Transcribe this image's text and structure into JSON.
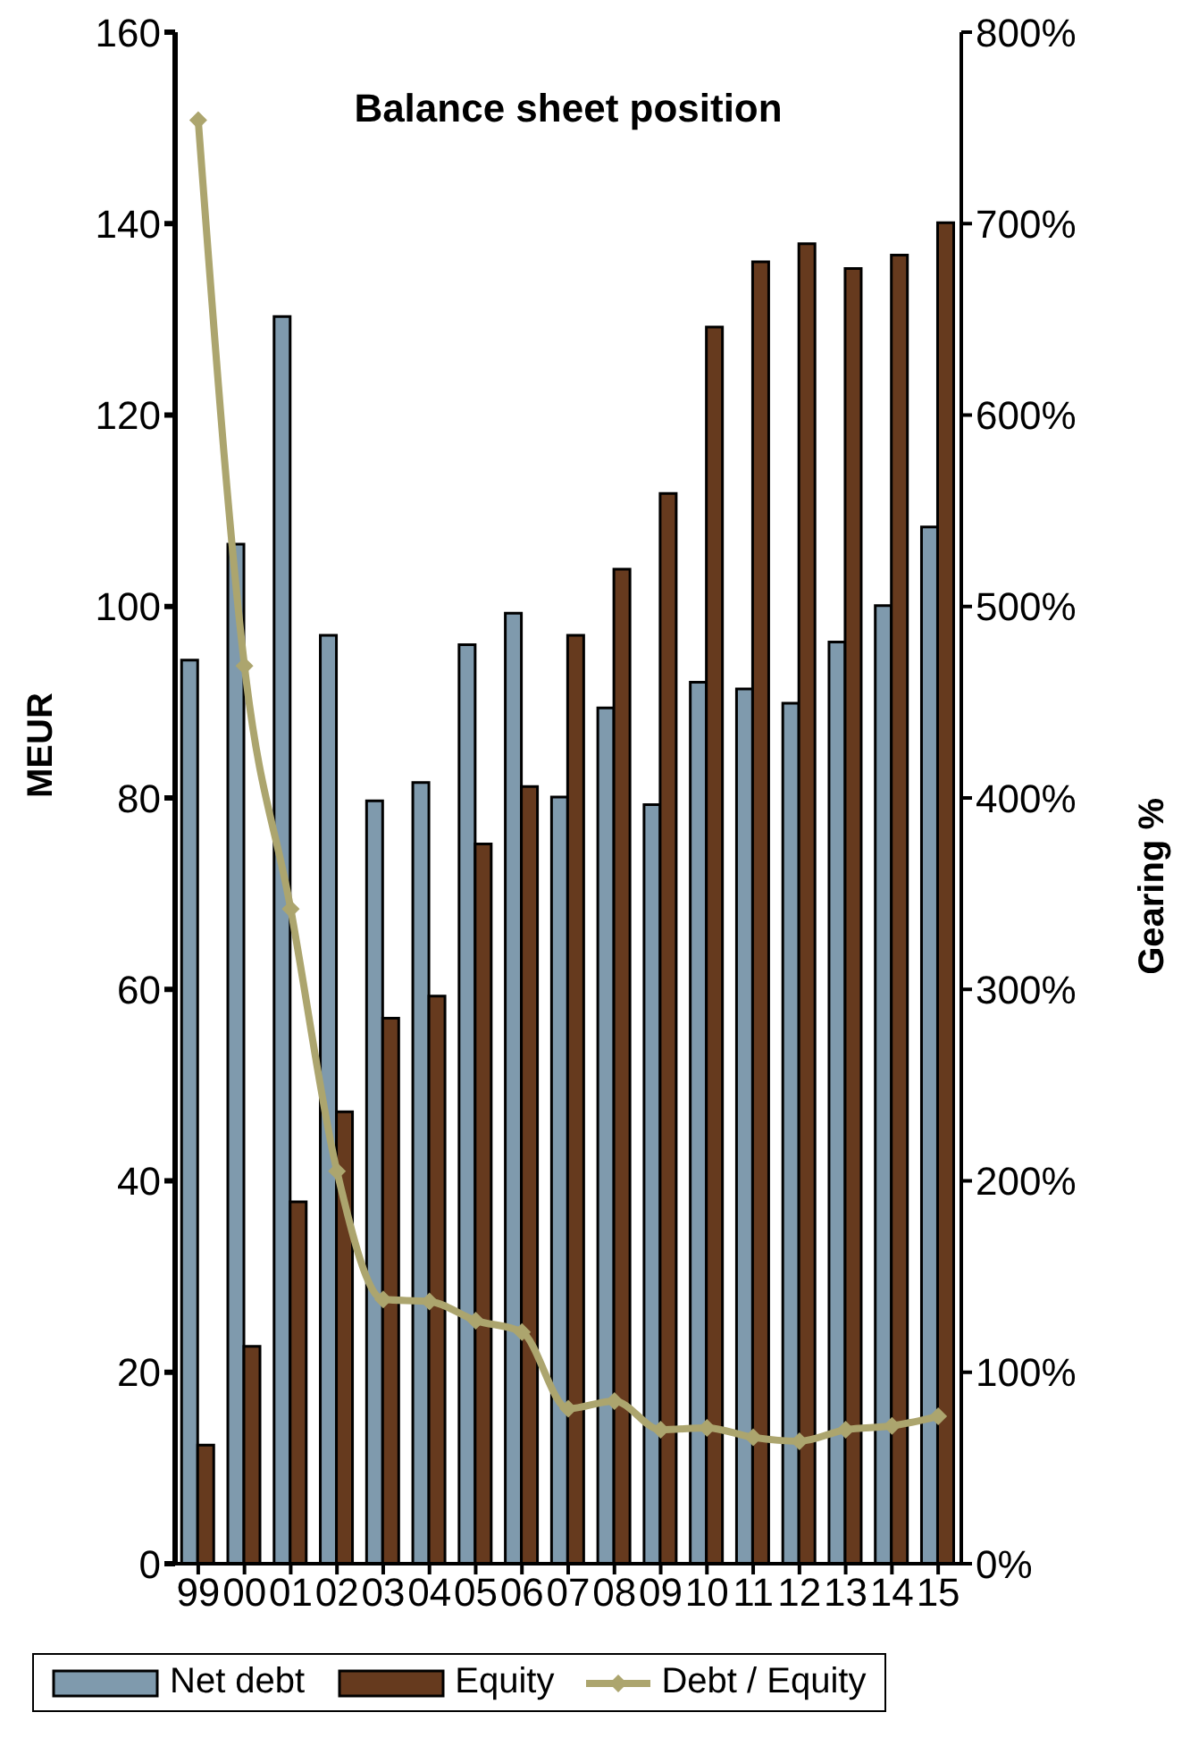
{
  "chart_data": {
    "type": "bar",
    "title": "Balance sheet position",
    "ylabel": "MEUR",
    "y2label": "Gearing %",
    "categories": [
      "99",
      "00",
      "01",
      "02",
      "03",
      "04",
      "05",
      "06",
      "07",
      "08",
      "09",
      "10",
      "11",
      "12",
      "13",
      "14",
      "15"
    ],
    "series": [
      {
        "name": "Net debt",
        "color": "#7f9aad",
        "values": [
          94.4,
          106.5,
          130.3,
          97,
          79.7,
          81.6,
          96,
          99.3,
          80.1,
          89.4,
          79.3,
          92.1,
          91.4,
          89.9,
          96.3,
          100.1,
          108.3
        ]
      },
      {
        "name": "Equity",
        "color": "#663a1e",
        "values": [
          12.4,
          22.7,
          37.8,
          47.2,
          57,
          59.3,
          75.2,
          81.2,
          97,
          103.9,
          111.8,
          129.2,
          136,
          137.9,
          135.3,
          136.7,
          140.1
        ]
      },
      {
        "name": "Debt / Equity",
        "type": "line",
        "axis": "y2",
        "color": "#aca56e",
        "values": [
          754,
          469,
          342,
          205,
          138,
          137,
          127,
          121,
          81,
          85,
          70,
          71,
          66,
          64,
          70,
          72,
          77
        ]
      }
    ],
    "ylim": [
      0,
      160
    ],
    "yticks": [
      0,
      20,
      40,
      60,
      80,
      100,
      120,
      140,
      160
    ],
    "y2lim": [
      0,
      800
    ],
    "y2ticks": [
      {
        "value": 0,
        "label": "0%"
      },
      {
        "value": 100,
        "label": "100%"
      },
      {
        "value": 200,
        "label": "200%"
      },
      {
        "value": 300,
        "label": "300%"
      },
      {
        "value": 400,
        "label": "400%"
      },
      {
        "value": 500,
        "label": "500%"
      },
      {
        "value": 600,
        "label": "600%"
      },
      {
        "value": 700,
        "label": "700%"
      },
      {
        "value": 800,
        "label": "800%"
      }
    ],
    "marker": "diamond",
    "legend": "bottom",
    "grid": false
  }
}
